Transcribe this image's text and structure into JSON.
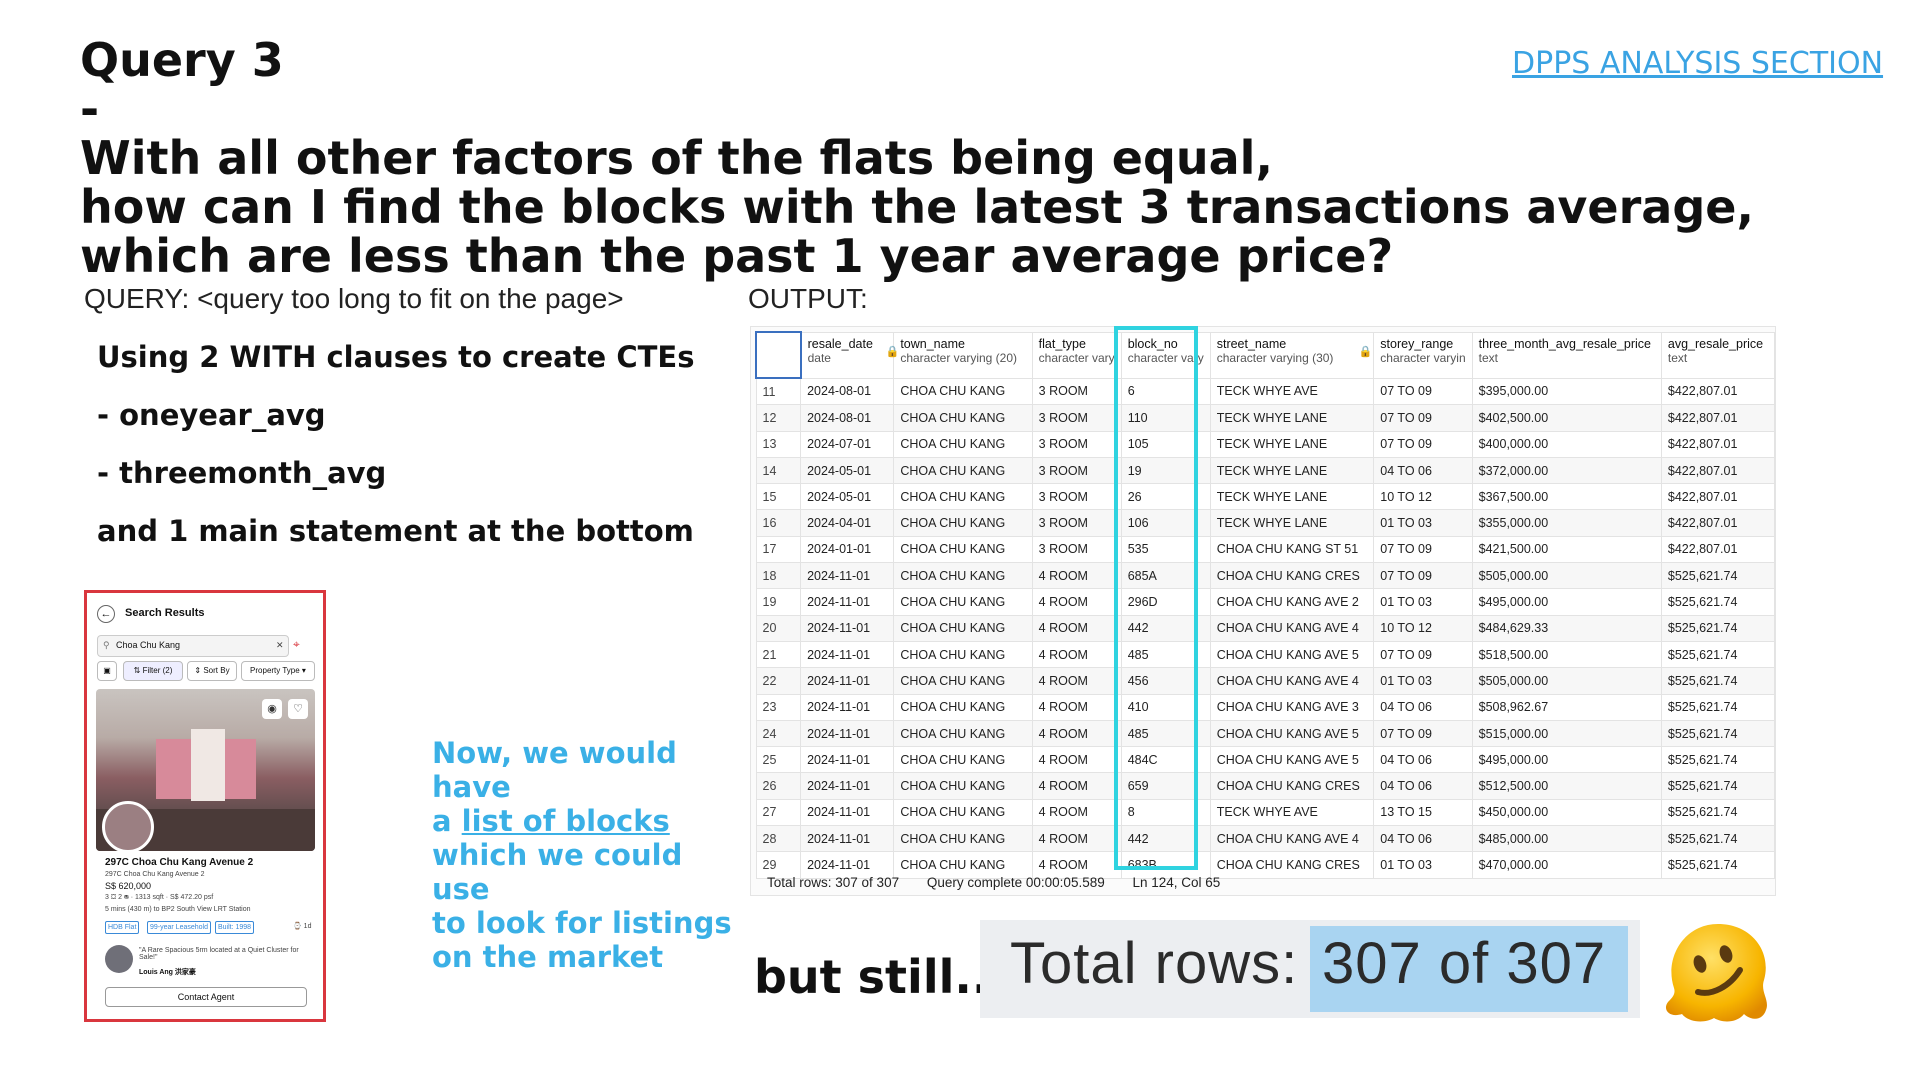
{
  "title": {
    "lead": "Query 3 -",
    "lines": [
      "With all other factors of the flats being equal,",
      "how can I find the blocks with the latest 3 transactions average,",
      "which are less than the past 1 year average price?"
    ]
  },
  "section_link": "DPPS ANALYSIS SECTION",
  "query": {
    "label": "QUERY: <query too long to fit on the page>",
    "lines": [
      "Using 2 WITH clauses to create CTEs",
      "- oneyear_avg",
      "- threemonth_avg",
      "and 1 main statement at the bottom"
    ]
  },
  "output_label": "OUTPUT:",
  "phone": {
    "header": "Search Results",
    "search_value": "Choa Chu Kang",
    "chips": [
      "Filter (2)",
      "Sort By",
      "Property Type"
    ],
    "listing_title": "297C Choa Chu Kang Avenue 2",
    "listing_address": "297C Choa Chu Kang Avenue 2",
    "price": "S$ 620,000",
    "specs": "3 ⛋  2 ⛀ · 1313 sqft · S$ 472.20 psf",
    "transit": "5 mins (430 m) to BP2 South View LRT Station",
    "tags": [
      "HDB Flat",
      "99-year Leasehold",
      "Built: 1998"
    ],
    "posted": "1d",
    "agent_quote": "\"A Rare Spacious 5rm located at a Quiet Cluster for Sale!\"",
    "agent_name": "Louis Ang 洪家豪",
    "contact": "Contact Agent"
  },
  "note": {
    "line1": "Now, we would have",
    "line2_prefix": "a ",
    "line2_link": "list of blocks",
    "line3": "which we could use",
    "line4": "to look for listings",
    "line5": "on the market"
  },
  "table": {
    "columns": [
      {
        "name": "",
        "type": ""
      },
      {
        "name": "resale_date",
        "type": "date"
      },
      {
        "name": "town_name",
        "type": "character varying (20)"
      },
      {
        "name": "flat_type",
        "type": "character vary"
      },
      {
        "name": "block_no",
        "type": "character vary"
      },
      {
        "name": "street_name",
        "type": "character varying (30)"
      },
      {
        "name": "storey_range",
        "type": "character varyin"
      },
      {
        "name": "three_month_avg_resale_price",
        "type": "text"
      },
      {
        "name": "avg_resale_price",
        "type": "text"
      }
    ],
    "rows": [
      [
        "11",
        "2024-08-01",
        "CHOA CHU KANG",
        "3 ROOM",
        "6",
        "TECK WHYE AVE",
        "07 TO 09",
        "$395,000.00",
        "$422,807.01"
      ],
      [
        "12",
        "2024-08-01",
        "CHOA CHU KANG",
        "3 ROOM",
        "110",
        "TECK WHYE LANE",
        "07 TO 09",
        "$402,500.00",
        "$422,807.01"
      ],
      [
        "13",
        "2024-07-01",
        "CHOA CHU KANG",
        "3 ROOM",
        "105",
        "TECK WHYE LANE",
        "07 TO 09",
        "$400,000.00",
        "$422,807.01"
      ],
      [
        "14",
        "2024-05-01",
        "CHOA CHU KANG",
        "3 ROOM",
        "19",
        "TECK WHYE LANE",
        "04 TO 06",
        "$372,000.00",
        "$422,807.01"
      ],
      [
        "15",
        "2024-05-01",
        "CHOA CHU KANG",
        "3 ROOM",
        "26",
        "TECK WHYE LANE",
        "10 TO 12",
        "$367,500.00",
        "$422,807.01"
      ],
      [
        "16",
        "2024-04-01",
        "CHOA CHU KANG",
        "3 ROOM",
        "106",
        "TECK WHYE LANE",
        "01 TO 03",
        "$355,000.00",
        "$422,807.01"
      ],
      [
        "17",
        "2024-01-01",
        "CHOA CHU KANG",
        "3 ROOM",
        "535",
        "CHOA CHU KANG ST 51",
        "07 TO 09",
        "$421,500.00",
        "$422,807.01"
      ],
      [
        "18",
        "2024-11-01",
        "CHOA CHU KANG",
        "4 ROOM",
        "685A",
        "CHOA CHU KANG CRES",
        "07 TO 09",
        "$505,000.00",
        "$525,621.74"
      ],
      [
        "19",
        "2024-11-01",
        "CHOA CHU KANG",
        "4 ROOM",
        "296D",
        "CHOA CHU KANG AVE 2",
        "01 TO 03",
        "$495,000.00",
        "$525,621.74"
      ],
      [
        "20",
        "2024-11-01",
        "CHOA CHU KANG",
        "4 ROOM",
        "442",
        "CHOA CHU KANG AVE 4",
        "10 TO 12",
        "$484,629.33",
        "$525,621.74"
      ],
      [
        "21",
        "2024-11-01",
        "CHOA CHU KANG",
        "4 ROOM",
        "485",
        "CHOA CHU KANG AVE 5",
        "07 TO 09",
        "$518,500.00",
        "$525,621.74"
      ],
      [
        "22",
        "2024-11-01",
        "CHOA CHU KANG",
        "4 ROOM",
        "456",
        "CHOA CHU KANG AVE 4",
        "01 TO 03",
        "$505,000.00",
        "$525,621.74"
      ],
      [
        "23",
        "2024-11-01",
        "CHOA CHU KANG",
        "4 ROOM",
        "410",
        "CHOA CHU KANG AVE 3",
        "04 TO 06",
        "$508,962.67",
        "$525,621.74"
      ],
      [
        "24",
        "2024-11-01",
        "CHOA CHU KANG",
        "4 ROOM",
        "485",
        "CHOA CHU KANG AVE 5",
        "07 TO 09",
        "$515,000.00",
        "$525,621.74"
      ],
      [
        "25",
        "2024-11-01",
        "CHOA CHU KANG",
        "4 ROOM",
        "484C",
        "CHOA CHU KANG AVE 5",
        "04 TO 06",
        "$495,000.00",
        "$525,621.74"
      ],
      [
        "26",
        "2024-11-01",
        "CHOA CHU KANG",
        "4 ROOM",
        "659",
        "CHOA CHU KANG CRES",
        "04 TO 06",
        "$512,500.00",
        "$525,621.74"
      ],
      [
        "27",
        "2024-11-01",
        "CHOA CHU KANG",
        "4 ROOM",
        "8",
        "TECK WHYE AVE",
        "13 TO 15",
        "$450,000.00",
        "$525,621.74"
      ],
      [
        "28",
        "2024-11-01",
        "CHOA CHU KANG",
        "4 ROOM",
        "442",
        "CHOA CHU KANG AVE 4",
        "04 TO 06",
        "$485,000.00",
        "$525,621.74"
      ],
      [
        "29",
        "2024-11-01",
        "CHOA CHU KANG",
        "4 ROOM",
        "683B",
        "CHOA CHU KANG CRES",
        "01 TO 03",
        "$470,000.00",
        "$525,621.74"
      ]
    ],
    "status": {
      "total_rows": "Total rows: 307 of 307",
      "query_complete": "Query complete 00:00:05.589",
      "cursor": "Ln 124, Col 65"
    }
  },
  "bottom": {
    "but_still": "but still...",
    "total_label": "Total rows:",
    "total_value": "307 of 307"
  },
  "colors": {
    "accent_blue": "#3ab0e6",
    "highlight_cyan": "#2fd3e0",
    "phone_border": "#d9363e",
    "selection_blue": "#a9d4f1"
  },
  "icons": [
    "back-arrow-icon",
    "search-icon",
    "clear-icon",
    "map-icon",
    "filter-icon",
    "sort-icon",
    "eye-icon",
    "heart-icon",
    "lock-icon",
    "melting-face-emoji"
  ]
}
